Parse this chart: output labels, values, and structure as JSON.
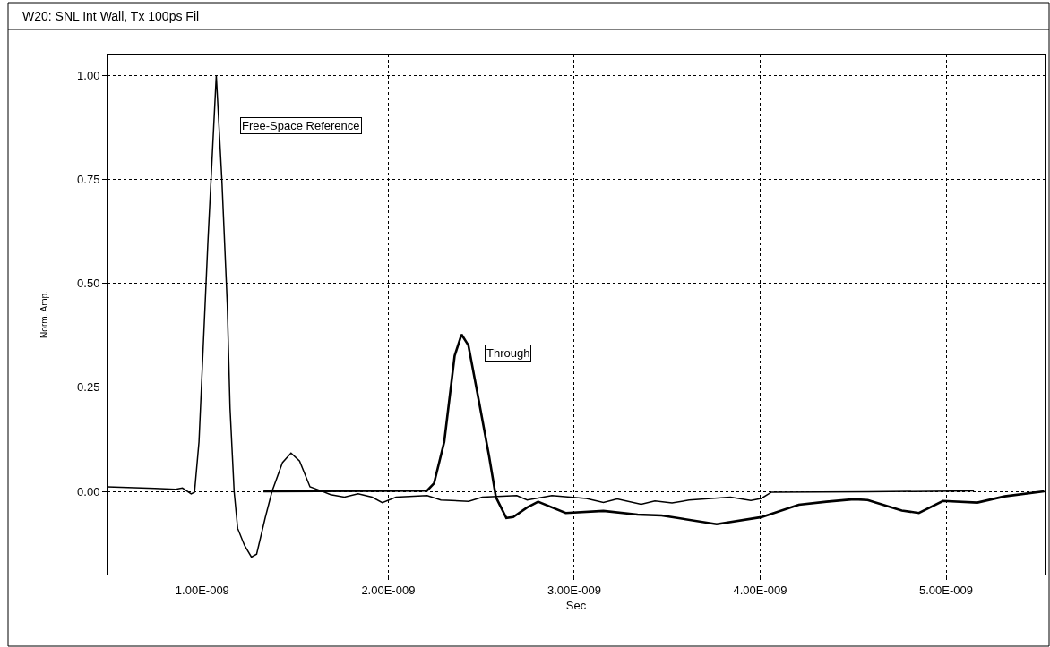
{
  "chart_data": {
    "type": "line",
    "title": "W20: SNL Int Wall, Tx 100ps Fil",
    "xlabel": "Sec",
    "ylabel": "Norm. Amp.",
    "xlim": [
      4.9e-10,
      5.53e-09
    ],
    "ylim": [
      -0.2,
      1.05
    ],
    "xticks": [
      {
        "value": 1e-09,
        "label": "1.00E-009"
      },
      {
        "value": 2e-09,
        "label": "2.00E-009"
      },
      {
        "value": 3e-09,
        "label": "3.00E-009"
      },
      {
        "value": 4e-09,
        "label": "4.00E-009"
      },
      {
        "value": 5e-09,
        "label": "5.00E-009"
      }
    ],
    "yticks": [
      {
        "value": 0,
        "label": "0.00"
      },
      {
        "value": 0.25,
        "label": "0.25"
      },
      {
        "value": 0.5,
        "label": "0.50"
      },
      {
        "value": 0.75,
        "label": "0.75"
      },
      {
        "value": 1,
        "label": "1.00"
      }
    ],
    "grid": true,
    "legend": false,
    "marker": "none",
    "line_style": "solid",
    "series": [
      {
        "name": "Free-Space Reference",
        "color": "#000000",
        "x": [
          4.9e-10,
          7.45e-10,
          8.56e-10,
          8.93e-10,
          9.4e-10,
          9.58e-10,
          9.82e-10,
          1.03e-09,
          1.075e-09,
          1.105e-09,
          1.134e-09,
          1.149e-09,
          1.171e-09,
          1.19e-09,
          1.227e-09,
          1.264e-09,
          1.292e-09,
          1.338e-09,
          1.375e-09,
          1.431e-09,
          1.477e-09,
          1.523e-09,
          1.579e-09,
          1.634e-09,
          1.69e-09,
          1.764e-09,
          1.838e-09,
          1.913e-09,
          1.968e-09,
          2.042e-09,
          2.209e-09,
          2.283e-09,
          2.432e-09,
          2.506e-09,
          2.691e-09,
          2.747e-09,
          2.88e-09,
          3.065e-09,
          3.157e-09,
          3.231e-09,
          3.36e-09,
          3.434e-09,
          3.526e-09,
          3.618e-09,
          3.84e-09,
          3.95e-09,
          4.006e-09,
          4.061e-09,
          4.578e-09,
          5.15e-09
        ],
        "values": [
          0.011,
          0.007,
          0.005,
          0.008,
          -0.006,
          -0.002,
          0.119,
          0.6,
          1.0,
          0.75,
          0.45,
          0.2,
          0,
          -0.089,
          -0.13,
          -0.158,
          -0.151,
          -0.064,
          0,
          0.069,
          0.092,
          0.073,
          0.011,
          0.002,
          -0.008,
          -0.014,
          -0.006,
          -0.014,
          -0.027,
          -0.014,
          -0.01,
          -0.021,
          -0.024,
          -0.014,
          -0.01,
          -0.021,
          -0.01,
          -0.017,
          -0.027,
          -0.018,
          -0.031,
          -0.023,
          -0.028,
          -0.021,
          -0.014,
          -0.022,
          -0.017,
          -0.002,
          -0.001,
          0.001
        ]
      },
      {
        "name": "Through",
        "color": "#000000",
        "x": [
          1.329e-09,
          2.209e-09,
          2.246e-09,
          2.301e-09,
          2.357e-09,
          2.394e-09,
          2.431e-09,
          2.487e-09,
          2.542e-09,
          2.579e-09,
          2.635e-09,
          2.672e-09,
          2.746e-09,
          2.806e-09,
          2.954e-09,
          3.157e-09,
          3.341e-09,
          3.47e-09,
          3.766e-09,
          4.006e-09,
          4.208e-09,
          4.356e-09,
          4.504e-09,
          4.578e-09,
          4.762e-09,
          4.854e-09,
          4.983e-09,
          5.168e-09,
          5.315e-09,
          5.528e-09
        ],
        "values": [
          0,
          0.002,
          0.019,
          0.119,
          0.326,
          0.377,
          0.351,
          0.218,
          0.085,
          -0.014,
          -0.064,
          -0.062,
          -0.039,
          -0.025,
          -0.052,
          -0.047,
          -0.056,
          -0.058,
          -0.079,
          -0.062,
          -0.032,
          -0.025,
          -0.019,
          -0.021,
          -0.046,
          -0.052,
          -0.023,
          -0.027,
          -0.012,
          0
        ]
      }
    ]
  }
}
